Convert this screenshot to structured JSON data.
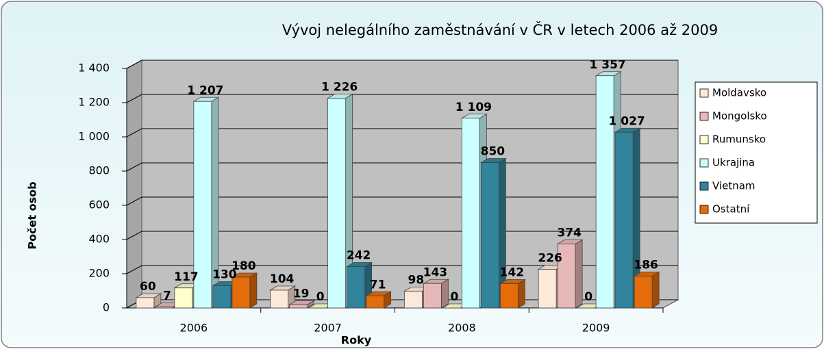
{
  "chart_data": {
    "type": "bar",
    "title": "Vývoj nelegálního zaměstnávání v ČR v letech 2006 až 2009",
    "x_label": "Roky",
    "y_label": "Počet osob",
    "categories": [
      "2006",
      "2007",
      "2008",
      "2009"
    ],
    "series": [
      {
        "name": "Moldavsko",
        "color": "#fde9d9",
        "values": [
          60,
          104,
          98,
          226
        ]
      },
      {
        "name": "Mongolsko",
        "color": "#e6b8b7",
        "values": [
          7,
          19,
          143,
          374
        ]
      },
      {
        "name": "Rumunsko",
        "color": "#ffffcc",
        "values": [
          117,
          0,
          0,
          0
        ]
      },
      {
        "name": "Ukrajina",
        "color": "#ccffff",
        "values": [
          1207,
          1226,
          1109,
          1357
        ],
        "value_labels": [
          "1 207",
          "1 226",
          "1 109",
          "1 357"
        ]
      },
      {
        "name": "Vietnam",
        "color": "#31849b",
        "values": [
          130,
          242,
          850,
          1027
        ],
        "value_labels": [
          "130",
          "242",
          "850",
          "1 027"
        ]
      },
      {
        "name": "Ostatní",
        "color": "#e46c0a",
        "values": [
          180,
          71,
          142,
          186
        ]
      }
    ],
    "ylim": [
      0,
      1400
    ],
    "yticks": [
      0,
      200,
      400,
      600,
      800,
      {
        "value": 1000,
        "label": "1 000"
      },
      {
        "value": 1200,
        "label": "1 200"
      },
      {
        "value": 1400,
        "label": "1 400"
      }
    ],
    "grid": true,
    "legend": "right"
  }
}
